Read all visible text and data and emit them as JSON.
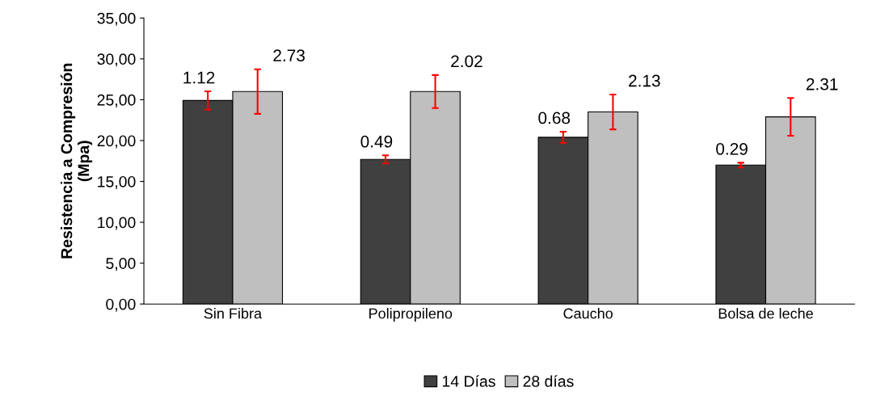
{
  "chart_data": {
    "type": "bar",
    "ylabel": "Resistencia a Compresión\n(Mpa)",
    "categories": [
      "Sin Fibra",
      "Polipropileno",
      "Caucho",
      "Bolsa de leche"
    ],
    "series": [
      {
        "name": "14 Días",
        "color": "#404040",
        "values": [
          24.9,
          17.7,
          20.4,
          17.0
        ],
        "errors": [
          1.12,
          0.49,
          0.68,
          0.29
        ]
      },
      {
        "name": "28 días",
        "color": "#bfbfbf",
        "values": [
          26.0,
          26.0,
          23.5,
          22.9
        ],
        "errors": [
          2.73,
          2.02,
          2.13,
          2.31
        ]
      }
    ],
    "annotations": [
      "1.12",
      "2.73",
      "0.49",
      "2.02",
      "0.68",
      "2.13",
      "0.29",
      "2.31"
    ],
    "ylim": [
      0,
      35
    ],
    "yticks": [
      {
        "value": 0,
        "label": "0,00"
      },
      {
        "value": 5,
        "label": "5,00"
      },
      {
        "value": 10,
        "label": "10,00"
      },
      {
        "value": 15,
        "label": "15,00"
      },
      {
        "value": 20,
        "label": "20,00"
      },
      {
        "value": 25,
        "label": "25,00"
      },
      {
        "value": 30,
        "label": "30,00"
      },
      {
        "value": 35,
        "label": "35,00"
      }
    ],
    "grid": false,
    "legend": "bottom"
  }
}
